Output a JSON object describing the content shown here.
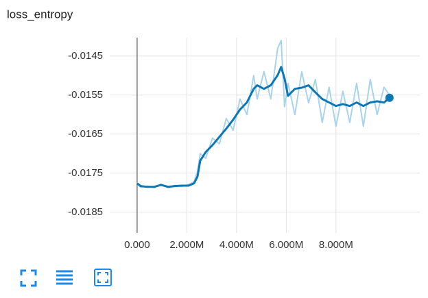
{
  "chart_data": {
    "type": "line",
    "title": "loss_entropy",
    "x": [
      0,
      138000,
      414000,
      690000,
      966000,
      1241000,
      1517000,
      1793000,
      2069000,
      2290000,
      2428000,
      2538000,
      2759000,
      3034000,
      3310000,
      3586000,
      3862000,
      4138000,
      4414000,
      4690000,
      4828000,
      5103000,
      5379000,
      5655000,
      5793000,
      5931000,
      6069000,
      6345000,
      6621000,
      6897000,
      7172000,
      7448000,
      7724000,
      8000000,
      8276000,
      8552000,
      8828000,
      9103000,
      9379000,
      9655000,
      9931000,
      10152000
    ],
    "series": [
      {
        "color": "#a9d3ea",
        "values": [
          -0.01774,
          -0.01786,
          -0.01783,
          -0.01787,
          -0.01778,
          -0.01787,
          -0.01781,
          -0.01784,
          -0.01779,
          -0.01772,
          -0.01745,
          -0.017,
          -0.01712,
          -0.0166,
          -0.01675,
          -0.0161,
          -0.0164,
          -0.0156,
          -0.016,
          -0.015,
          -0.0156,
          -0.0149,
          -0.0156,
          -0.0143,
          -0.0141,
          -0.0158,
          -0.0152,
          -0.016,
          -0.0149,
          -0.0157,
          -0.0151,
          -0.0162,
          -0.0153,
          -0.0163,
          -0.0154,
          -0.0162,
          -0.0152,
          -0.0163,
          -0.0151,
          -0.016,
          -0.0153,
          -0.0155
        ]
      },
      {
        "color": "#0b77b6",
        "values": [
          -0.01776,
          -0.01783,
          -0.01785,
          -0.01785,
          -0.0178,
          -0.01785,
          -0.01783,
          -0.01782,
          -0.01782,
          -0.01776,
          -0.01759,
          -0.01718,
          -0.01696,
          -0.01678,
          -0.01657,
          -0.01636,
          -0.01613,
          -0.01587,
          -0.01569,
          -0.01534,
          -0.01525,
          -0.01534,
          -0.01525,
          -0.01499,
          -0.01478,
          -0.01508,
          -0.01552,
          -0.01534,
          -0.01531,
          -0.01525,
          -0.01543,
          -0.0156,
          -0.01569,
          -0.01578,
          -0.01573,
          -0.01578,
          -0.01569,
          -0.01578,
          -0.01569,
          -0.01566,
          -0.01569,
          -0.01557
        ]
      }
    ],
    "xlim": [
      -1100000,
      11370000
    ],
    "xticks": [
      {
        "value": 0,
        "label": "0.000"
      },
      {
        "value": 2000000,
        "label": "2.000M"
      },
      {
        "value": 4000000,
        "label": "4.000M"
      },
      {
        "value": 6000000,
        "label": "6.000M"
      },
      {
        "value": 8000000,
        "label": "8.000M"
      }
    ],
    "ylim": [
      -0.01903,
      -0.01403
    ],
    "yticks": [
      -0.0145,
      -0.0155,
      -0.0165,
      -0.0175,
      -0.0185
    ],
    "grid": true
  }
}
